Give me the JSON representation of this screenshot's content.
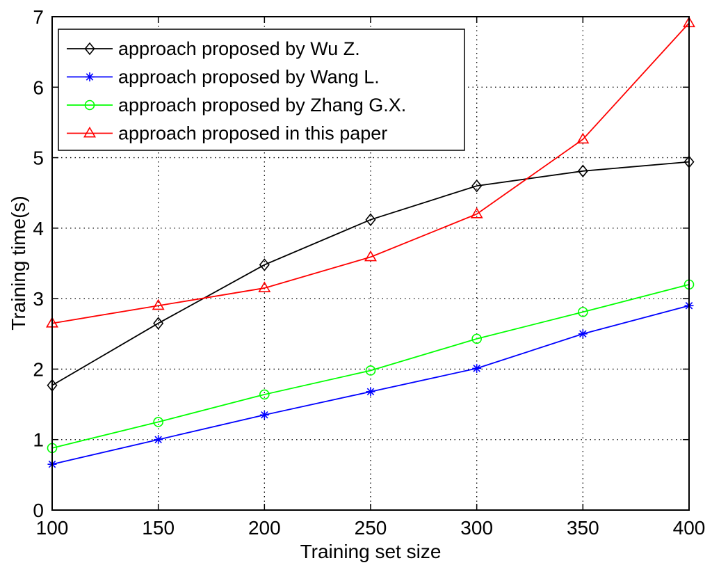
{
  "chart_data": {
    "type": "line",
    "title": "",
    "xlabel": "Training set size",
    "ylabel": "Training time(s)",
    "xlim": [
      100,
      400
    ],
    "ylim": [
      0,
      7
    ],
    "xticks": [
      100,
      150,
      200,
      250,
      300,
      350,
      400
    ],
    "yticks": [
      0,
      1,
      2,
      3,
      4,
      5,
      6,
      7
    ],
    "grid": true,
    "legend_position": "top-left",
    "x": [
      100,
      150,
      200,
      250,
      300,
      350,
      400
    ],
    "series": [
      {
        "name": "approach proposed by Wu Z.",
        "color": "#000000",
        "marker": "diamond",
        "values": [
          1.77,
          2.65,
          3.48,
          4.12,
          4.6,
          4.81,
          4.94
        ]
      },
      {
        "name": "approach proposed by Wang L.",
        "color": "#0000ff",
        "marker": "asterisk",
        "values": [
          0.65,
          1.0,
          1.35,
          1.68,
          2.01,
          2.5,
          2.9
        ]
      },
      {
        "name": "approach proposed by Zhang G.X.",
        "color": "#00ff00",
        "marker": "circle",
        "values": [
          0.88,
          1.25,
          1.64,
          1.98,
          2.43,
          2.81,
          3.2
        ]
      },
      {
        "name": "approach proposed in this paper",
        "color": "#ff0000",
        "marker": "triangle",
        "values": [
          2.65,
          2.9,
          3.15,
          3.59,
          4.2,
          5.26,
          6.91
        ]
      }
    ]
  }
}
